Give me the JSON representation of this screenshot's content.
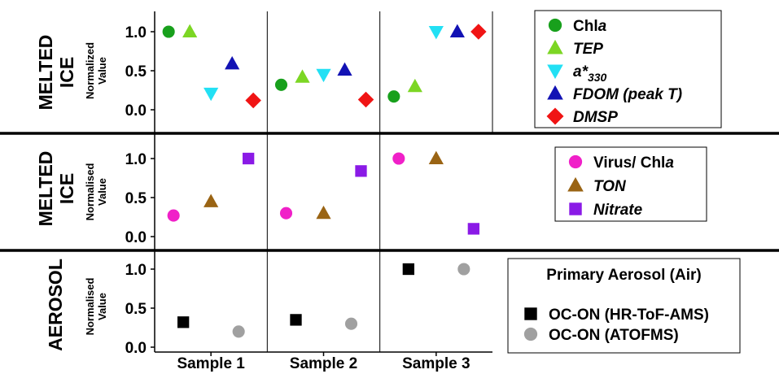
{
  "chart_data": [
    {
      "type": "scatter",
      "panel": "top",
      "row_title": [
        "MELTED",
        "ICE"
      ],
      "ylabel": "Normalized Value",
      "categories": [
        "Sample 1",
        "Sample 2",
        "Sample 3"
      ],
      "ylim": [
        0,
        1.1
      ],
      "yticks": [
        "0.0",
        "0.5",
        "1.0"
      ],
      "series": [
        {
          "label": "Chl",
          "label_italic": "a",
          "marker": "circle",
          "color": "#18a01c",
          "values": [
            1.0,
            0.32,
            0.17
          ]
        },
        {
          "label": "TEP",
          "marker": "triangle-up",
          "color": "#7cd624",
          "values": [
            1.0,
            0.42,
            0.3
          ]
        },
        {
          "label": "a*",
          "label_sub": "330",
          "marker": "triangle-down",
          "color": "#22e0f4",
          "values": [
            0.21,
            0.45,
            1.0
          ]
        },
        {
          "label": "FDOM (peak T)",
          "marker": "triangle-up",
          "color": "#1212b4",
          "values": [
            0.59,
            0.51,
            1.0
          ]
        },
        {
          "label": "DMSP",
          "marker": "diamond",
          "color": "#f01414",
          "values": [
            0.12,
            0.13,
            1.0
          ]
        }
      ]
    },
    {
      "type": "scatter",
      "panel": "middle",
      "row_title": [
        "MELTED",
        "ICE"
      ],
      "ylabel": "Normalised Value",
      "categories": [
        "Sample 1",
        "Sample 2",
        "Sample 3"
      ],
      "ylim": [
        0,
        1.1
      ],
      "yticks": [
        "0.0",
        "0.5",
        "1.0"
      ],
      "series": [
        {
          "label": "Virus/ Chl",
          "label_italic": "a",
          "marker": "circle",
          "color": "#f020c8",
          "values": [
            0.27,
            0.3,
            1.0
          ]
        },
        {
          "label": "TON",
          "marker": "triangle-up",
          "color": "#9a6414",
          "values": [
            0.45,
            0.3,
            1.0
          ]
        },
        {
          "label": "Nitrate",
          "marker": "square",
          "color": "#8a1ae6",
          "values": [
            1.0,
            0.84,
            0.1
          ]
        }
      ]
    },
    {
      "type": "scatter",
      "panel": "bottom",
      "row_title": [
        "AEROSOL"
      ],
      "ylabel": "Normalised Value",
      "categories": [
        "Sample 1",
        "Sample 2",
        "Sample 3"
      ],
      "ylim": [
        0,
        1.1
      ],
      "yticks": [
        "0.0",
        "0.5",
        "1.0"
      ],
      "legend_title": "Primary Aerosol (Air)",
      "series": [
        {
          "label": "OC-ON (HR-ToF-AMS)",
          "marker": "square",
          "color": "#000000",
          "values": [
            0.32,
            0.35,
            1.0
          ]
        },
        {
          "label": "OC-ON (ATOFMS)",
          "marker": "circle",
          "color": "#a0a0a0",
          "values": [
            0.2,
            0.3,
            1.0
          ]
        }
      ]
    }
  ]
}
